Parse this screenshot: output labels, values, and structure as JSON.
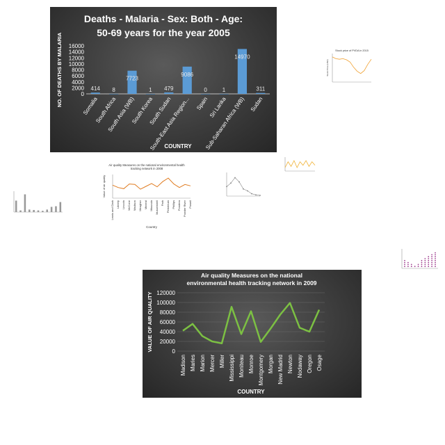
{
  "chart_data": [
    {
      "type": "bar",
      "title_lines": [
        "Deaths - Malaria - Sex: Both - Age:",
        "50-69 years for the year 2005"
      ],
      "xlabel": "COUNTRY",
      "ylabel": "NO. OF DEATHS BY MALARIA",
      "ylim": [
        0,
        16000
      ],
      "yticks": [
        0,
        2000,
        4000,
        6000,
        8000,
        10000,
        12000,
        14000,
        16000
      ],
      "categories": [
        "Somalia",
        "South Africa",
        "South Asia (WB)",
        "South Korea",
        "South Sudan",
        "South-East Asia Region...",
        "Spain",
        "Sri Lanka",
        "Sub-Saharan Africa (WB)",
        "Sudan"
      ],
      "values": [
        414,
        8,
        7723,
        1,
        479,
        9086,
        0,
        1,
        14970,
        311
      ],
      "bar_color": "#5b9bd5",
      "grid": false
    },
    {
      "type": "line",
      "title": "Stock price of PVDA in 2015",
      "ylabel": "Stock Price (USD)",
      "values": [
        88,
        82,
        80,
        82,
        78,
        70,
        52,
        38,
        30,
        40,
        62,
        80
      ],
      "ylim": [
        0,
        100
      ],
      "line_color": "#f0a030"
    },
    {
      "type": "line",
      "values": [
        3,
        8,
        4,
        9,
        3,
        8,
        5,
        9,
        4,
        8,
        5
      ],
      "ylim": [
        0,
        12
      ],
      "line_color": "#f0b030"
    },
    {
      "type": "line",
      "values": [
        40,
        55,
        78,
        60,
        30,
        22,
        10,
        5,
        3
      ],
      "ylim": [
        0,
        100
      ],
      "line_color": "#888888"
    },
    {
      "type": "line",
      "title_lines": [
        "Air quality Measures on the national environmental health",
        "tracking network in 2008"
      ],
      "xlabel": "Country",
      "ylabel": "Value of air quality",
      "categories": [
        "Lewis and Clark",
        "Liberty",
        "Lincoln",
        "McCone",
        "Madison",
        "Meagher",
        "Mineral",
        "Missoula",
        "Musselshell",
        "Park",
        "Petroleum",
        "Phillips",
        "Pondera",
        "Powder River",
        "Powell"
      ],
      "values": [
        55,
        45,
        40,
        60,
        58,
        38,
        50,
        62,
        48,
        70,
        85,
        60,
        45,
        58,
        52
      ],
      "ylim": [
        0,
        100
      ],
      "line_color": "#e07b20"
    },
    {
      "type": "bar",
      "values": [
        55,
        8,
        85,
        12,
        10,
        8,
        6,
        12,
        25,
        28,
        48
      ],
      "ylim": [
        0,
        100
      ],
      "bar_color": "#999999"
    },
    {
      "type": "scatter",
      "values": [
        4,
        3,
        2,
        1,
        2,
        4,
        5,
        6,
        7,
        8
      ],
      "ylim": [
        0,
        10
      ],
      "point_color": "#a04090"
    },
    {
      "type": "line",
      "title_lines": [
        "Air quality Measures on the national",
        "environmental health tracking network in 2009"
      ],
      "xlabel": "COUNTRY",
      "ylabel": "VALUE OF AIR QUALITY",
      "ylim": [
        0,
        120000
      ],
      "yticks": [
        0,
        20000,
        40000,
        60000,
        80000,
        100000,
        120000
      ],
      "categories": [
        "Madison",
        "Maries",
        "Marion",
        "Mercer",
        "Miller",
        "Mississippi",
        "Moniteau",
        "Monroe",
        "Montgomery",
        "Morgan",
        "New Madrid",
        "Newton",
        "Nodaway",
        "Oregon",
        "Osage"
      ],
      "values": [
        42000,
        56000,
        31000,
        20000,
        16000,
        91000,
        35000,
        82000,
        19000,
        46000,
        75000,
        99000,
        48000,
        40000,
        85000
      ],
      "line_color": "#7cc043",
      "grid": true
    }
  ]
}
